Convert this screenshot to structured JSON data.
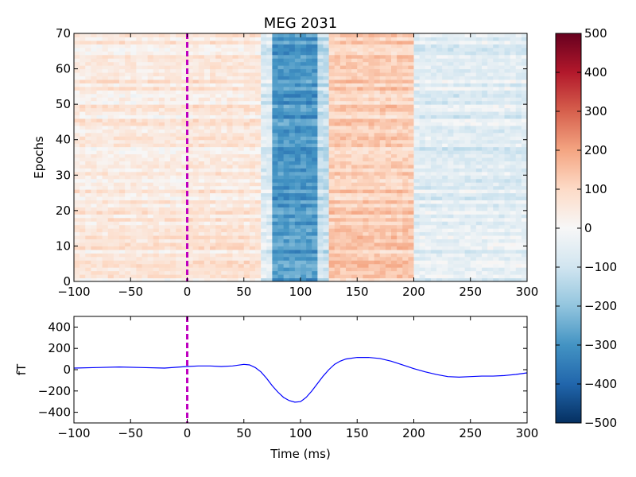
{
  "chart_data": [
    {
      "type": "heatmap",
      "title": "MEG 2031",
      "xlabel": "",
      "ylabel": "Epochs",
      "xlim": [
        -100,
        300
      ],
      "ylim": [
        0,
        70
      ],
      "xticks": [
        "−100",
        "−50",
        "0",
        "50",
        "100",
        "150",
        "200",
        "250",
        "300"
      ],
      "xtick_values": [
        -100,
        -50,
        0,
        50,
        100,
        150,
        200,
        250,
        300
      ],
      "yticks": [
        "0",
        "10",
        "20",
        "30",
        "40",
        "50",
        "60",
        "70"
      ],
      "ytick_values": [
        0,
        10,
        20,
        30,
        40,
        50,
        60,
        70
      ],
      "colormap": "RdBu_r",
      "n_epochs": 70,
      "time_bands": [
        {
          "t0": -100,
          "t1": 0,
          "mean": 45
        },
        {
          "t0": 0,
          "t1": 65,
          "mean": 55
        },
        {
          "t0": 65,
          "t1": 75,
          "mean": -70
        },
        {
          "t0": 75,
          "t1": 115,
          "mean": -290
        },
        {
          "t0": 115,
          "t1": 125,
          "mean": -120
        },
        {
          "t0": 125,
          "t1": 200,
          "mean": 120
        },
        {
          "t0": 200,
          "t1": 300,
          "mean": -60
        }
      ],
      "marker_time": 0
    },
    {
      "type": "line",
      "title": "",
      "xlabel": "Time (ms)",
      "ylabel": "fT",
      "xlim": [
        -100,
        300
      ],
      "ylim": [
        -500,
        500
      ],
      "xticks": [
        "−100",
        "−50",
        "0",
        "50",
        "100",
        "150",
        "200",
        "250",
        "300"
      ],
      "xtick_values": [
        -100,
        -50,
        0,
        50,
        100,
        150,
        200,
        250,
        300
      ],
      "yticks": [
        "−400",
        "−200",
        "0",
        "200",
        "400"
      ],
      "ytick_values": [
        -400,
        -200,
        0,
        200,
        400
      ],
      "series_color": "#0000ff",
      "x": [
        -100,
        -80,
        -60,
        -40,
        -20,
        0,
        10,
        20,
        30,
        40,
        50,
        55,
        60,
        65,
        70,
        75,
        80,
        85,
        90,
        95,
        100,
        105,
        110,
        115,
        120,
        125,
        130,
        135,
        140,
        150,
        160,
        170,
        180,
        190,
        200,
        210,
        220,
        230,
        240,
        250,
        260,
        270,
        280,
        290,
        300
      ],
      "y": [
        15,
        20,
        25,
        20,
        15,
        30,
        35,
        35,
        30,
        35,
        50,
        45,
        20,
        -20,
        -80,
        -150,
        -210,
        -260,
        -290,
        -305,
        -300,
        -260,
        -200,
        -130,
        -60,
        0,
        50,
        80,
        100,
        115,
        115,
        105,
        80,
        45,
        10,
        -20,
        -45,
        -65,
        -70,
        -65,
        -60,
        -60,
        -55,
        -45,
        -30
      ],
      "marker_time": 0
    },
    {
      "type": "colorbar",
      "vmin": -500,
      "vmax": 500,
      "ticks": [
        "500",
        "400",
        "300",
        "200",
        "100",
        "0",
        "−100",
        "−200",
        "−300",
        "−400",
        "−500"
      ],
      "tick_values": [
        500,
        400,
        300,
        200,
        100,
        0,
        -100,
        -200,
        -300,
        -400,
        -500
      ]
    }
  ],
  "colors": {
    "marker": "#bf00bf",
    "line": "#0000ff",
    "axes": "#000000"
  }
}
